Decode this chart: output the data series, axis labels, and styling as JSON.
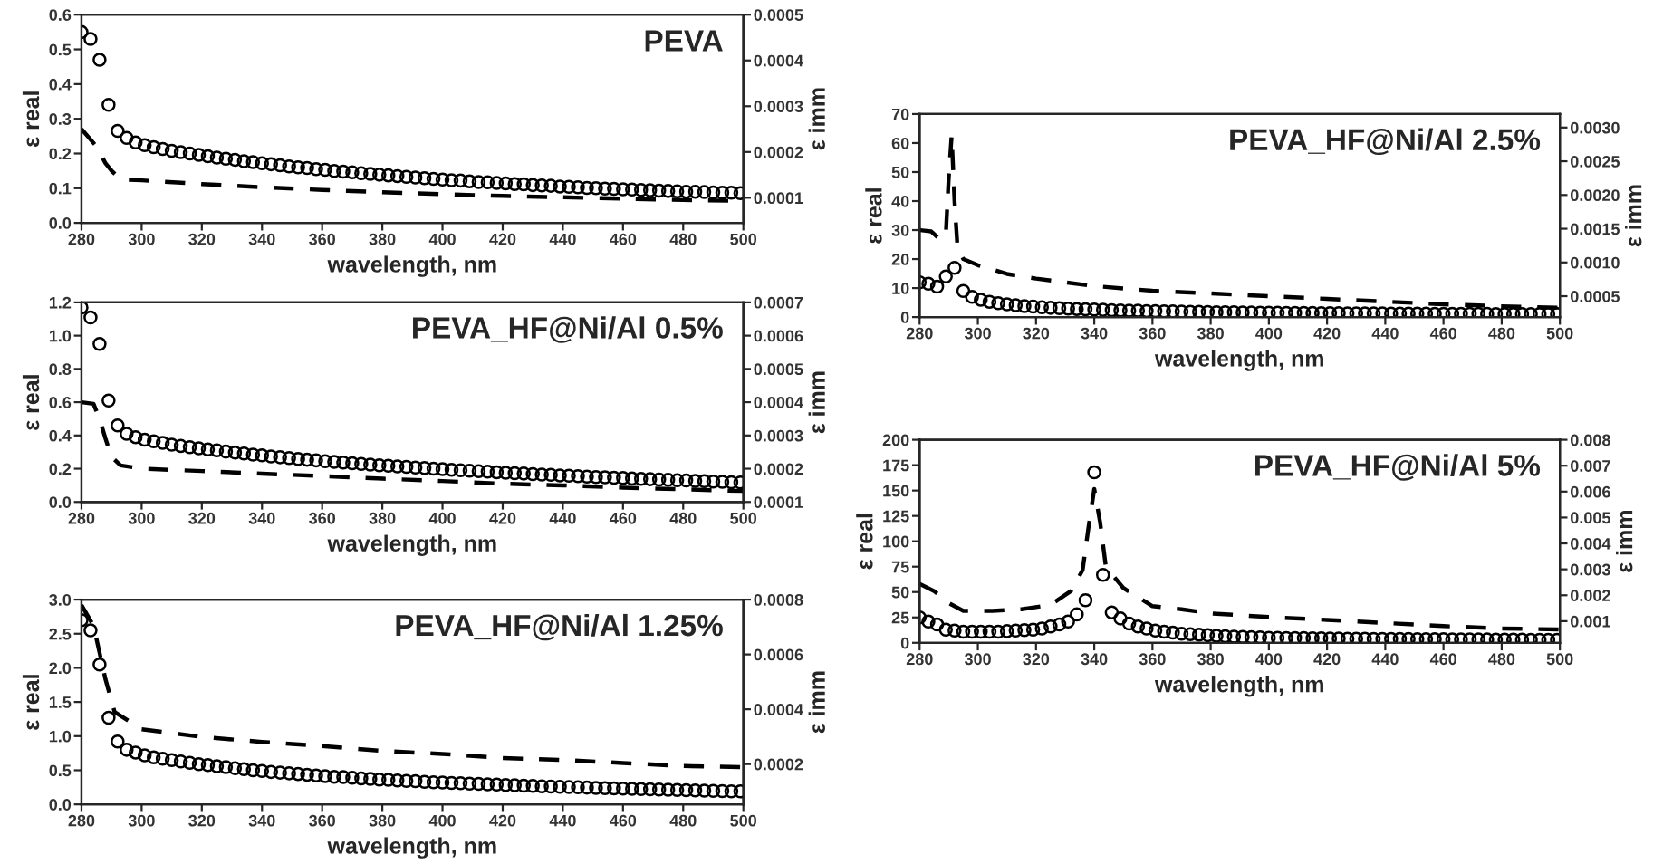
{
  "chart_data": [
    {
      "type": "scatter",
      "title": "PEVA",
      "xlabel": "wavelength, nm",
      "ylabel": "ε real",
      "y2label": "ε imm",
      "xlim": [
        280,
        500
      ],
      "xticks": [
        280,
        300,
        320,
        340,
        360,
        380,
        400,
        420,
        440,
        460,
        480,
        500
      ],
      "ylim": [
        0,
        0.6
      ],
      "yticks": [
        {
          "value": 0,
          "label": "0.0"
        },
        {
          "value": 0.1,
          "label": "0.1"
        },
        {
          "value": 0.2,
          "label": "0.2"
        },
        {
          "value": 0.3,
          "label": "0.3"
        },
        {
          "value": 0.4,
          "label": "0.4"
        },
        {
          "value": 0.5,
          "label": "0.5"
        },
        {
          "value": 0.6,
          "label": "0.6"
        }
      ],
      "y2lim": [
        4.5e-05,
        0.0005
      ],
      "y2ticks": [
        {
          "value": 0.0001,
          "label": "0.0001"
        },
        {
          "value": 0.0002,
          "label": "0.0002"
        },
        {
          "value": 0.0003,
          "label": "0.0003"
        },
        {
          "value": 0.0004,
          "label": "0.0004"
        },
        {
          "value": 0.0005,
          "label": "0.0005"
        }
      ],
      "x": [
        280,
        283,
        286,
        289,
        292,
        295,
        298,
        301,
        304,
        307,
        310,
        313,
        316,
        319,
        322,
        325,
        328,
        331,
        334,
        337,
        340,
        343,
        346,
        349,
        352,
        355,
        358,
        361,
        364,
        367,
        370,
        373,
        376,
        379,
        382,
        385,
        388,
        391,
        394,
        397,
        400,
        403,
        406,
        409,
        412,
        415,
        418,
        421,
        424,
        427,
        430,
        433,
        436,
        439,
        442,
        445,
        448,
        451,
        454,
        457,
        460,
        463,
        466,
        469,
        472,
        475,
        478,
        481,
        484,
        487,
        490,
        493,
        496,
        499
      ],
      "series": [
        {
          "marker": "circle",
          "color": "#000000",
          "values": [
            0.55,
            0.53,
            0.47,
            0.34,
            0.265,
            0.245,
            0.232,
            0.224,
            0.218,
            0.213,
            0.208,
            0.204,
            0.2,
            0.196,
            0.192,
            0.188,
            0.185,
            0.182,
            0.178,
            0.175,
            0.172,
            0.169,
            0.166,
            0.163,
            0.16,
            0.158,
            0.155,
            0.153,
            0.15,
            0.148,
            0.146,
            0.143,
            0.141,
            0.139,
            0.137,
            0.135,
            0.133,
            0.131,
            0.129,
            0.127,
            0.125,
            0.123,
            0.122,
            0.12,
            0.118,
            0.117,
            0.115,
            0.114,
            0.112,
            0.111,
            0.109,
            0.108,
            0.107,
            0.105,
            0.104,
            0.103,
            0.101,
            0.1,
            0.099,
            0.098,
            0.097,
            0.096,
            0.095,
            0.094,
            0.093,
            0.092,
            0.091,
            0.09,
            0.09,
            0.089,
            0.088,
            0.087,
            0.087,
            0.086
          ]
        },
        {
          "type": "line",
          "axis": "y2",
          "line_style": "dashed",
          "color": "#000000",
          "x": [
            280,
            285,
            288,
            290,
            293,
            300,
            320,
            340,
            360,
            380,
            400,
            420,
            440,
            460,
            480,
            500
          ],
          "values": [
            0.00025,
            0.000212,
            0.000175,
            0.000159,
            0.00014,
            0.000138,
            0.00013,
            0.000123,
            0.000117,
            0.000112,
            0.000108,
            0.000104,
            0.000101,
            9.8e-05,
            9.5e-05,
            9.3e-05
          ]
        }
      ]
    },
    {
      "type": "scatter",
      "title": "PEVA_HF@Ni/Al 0.5%",
      "xlabel": "wavelength, nm",
      "ylabel": "ε real",
      "y2label": "ε imm",
      "xlim": [
        280,
        500
      ],
      "xticks": [
        280,
        300,
        320,
        340,
        360,
        380,
        400,
        420,
        440,
        460,
        480,
        500
      ],
      "ylim": [
        0,
        1.2
      ],
      "yticks": [
        {
          "value": 0,
          "label": "0.0"
        },
        {
          "value": 0.2,
          "label": "0.2"
        },
        {
          "value": 0.4,
          "label": "0.4"
        },
        {
          "value": 0.6,
          "label": "0.6"
        },
        {
          "value": 0.8,
          "label": "0.8"
        },
        {
          "value": 1.0,
          "label": "1.0"
        },
        {
          "value": 1.2,
          "label": "1.2"
        }
      ],
      "y2lim": [
        0.0001,
        0.0007
      ],
      "y2ticks": [
        {
          "value": 0.0001,
          "label": "0.0001"
        },
        {
          "value": 0.0002,
          "label": "0.0002"
        },
        {
          "value": 0.0003,
          "label": "0.0003"
        },
        {
          "value": 0.0004,
          "label": "0.0004"
        },
        {
          "value": 0.0005,
          "label": "0.0005"
        },
        {
          "value": 0.0006,
          "label": "0.0006"
        },
        {
          "value": 0.0007,
          "label": "0.0007"
        }
      ],
      "x": [
        280,
        283,
        286,
        289,
        292,
        295,
        298,
        301,
        304,
        307,
        310,
        313,
        316,
        319,
        322,
        325,
        328,
        331,
        334,
        337,
        340,
        343,
        346,
        349,
        352,
        355,
        358,
        361,
        364,
        367,
        370,
        373,
        376,
        379,
        382,
        385,
        388,
        391,
        394,
        397,
        400,
        403,
        406,
        409,
        412,
        415,
        418,
        421,
        424,
        427,
        430,
        433,
        436,
        439,
        442,
        445,
        448,
        451,
        454,
        457,
        460,
        463,
        466,
        469,
        472,
        475,
        478,
        481,
        484,
        487,
        490,
        493,
        496,
        499
      ],
      "series": [
        {
          "marker": "circle",
          "color": "#000000",
          "values": [
            1.17,
            1.11,
            0.95,
            0.61,
            0.46,
            0.41,
            0.39,
            0.375,
            0.365,
            0.355,
            0.345,
            0.337,
            0.33,
            0.323,
            0.316,
            0.31,
            0.303,
            0.297,
            0.291,
            0.285,
            0.28,
            0.274,
            0.269,
            0.264,
            0.259,
            0.254,
            0.25,
            0.245,
            0.241,
            0.237,
            0.233,
            0.229,
            0.225,
            0.221,
            0.218,
            0.214,
            0.211,
            0.207,
            0.204,
            0.2,
            0.197,
            0.194,
            0.191,
            0.188,
            0.185,
            0.182,
            0.179,
            0.176,
            0.173,
            0.171,
            0.168,
            0.165,
            0.163,
            0.16,
            0.158,
            0.155,
            0.153,
            0.15,
            0.148,
            0.146,
            0.144,
            0.141,
            0.139,
            0.137,
            0.135,
            0.133,
            0.131,
            0.129,
            0.127,
            0.125,
            0.123,
            0.121,
            0.119,
            0.117
          ]
        },
        {
          "type": "line",
          "axis": "y2",
          "line_style": "dashed",
          "color": "#000000",
          "x": [
            280,
            284,
            286,
            288,
            290,
            293,
            300,
            320,
            340,
            360,
            380,
            400,
            420,
            440,
            460,
            480,
            500
          ],
          "values": [
            0.0004,
            0.000395,
            0.00035,
            0.00029,
            0.000235,
            0.00021,
            0.0002,
            0.000193,
            0.000185,
            0.000178,
            0.00017,
            0.000163,
            0.000155,
            0.00015,
            0.000143,
            0.000138,
            0.000133
          ]
        }
      ]
    },
    {
      "type": "scatter",
      "title": "PEVA_HF@Ni/Al 1.25%",
      "xlabel": "wavelength, nm",
      "ylabel": "ε real",
      "y2label": "ε imm",
      "xlim": [
        280,
        500
      ],
      "xticks": [
        280,
        300,
        320,
        340,
        360,
        380,
        400,
        420,
        440,
        460,
        480,
        500
      ],
      "ylim": [
        0,
        3.0
      ],
      "yticks": [
        {
          "value": 0,
          "label": "0.0"
        },
        {
          "value": 0.5,
          "label": "0.5"
        },
        {
          "value": 1.0,
          "label": "1.0"
        },
        {
          "value": 1.5,
          "label": "1.5"
        },
        {
          "value": 2.0,
          "label": "2.0"
        },
        {
          "value": 2.5,
          "label": "2.5"
        },
        {
          "value": 3.0,
          "label": "3.0"
        }
      ],
      "y2lim": [
        5.3e-05,
        0.0008
      ],
      "y2ticks": [
        {
          "value": 0.0002,
          "label": "0.0002"
        },
        {
          "value": 0.0004,
          "label": "0.0004"
        },
        {
          "value": 0.0006,
          "label": "0.0006"
        },
        {
          "value": 0.0008,
          "label": "0.0008"
        }
      ],
      "x": [
        280,
        283,
        286,
        289,
        292,
        295,
        298,
        301,
        304,
        307,
        310,
        313,
        316,
        319,
        322,
        325,
        328,
        331,
        334,
        337,
        340,
        343,
        346,
        349,
        352,
        355,
        358,
        361,
        364,
        367,
        370,
        373,
        376,
        379,
        382,
        385,
        388,
        391,
        394,
        397,
        400,
        403,
        406,
        409,
        412,
        415,
        418,
        421,
        424,
        427,
        430,
        433,
        436,
        439,
        442,
        445,
        448,
        451,
        454,
        457,
        460,
        463,
        466,
        469,
        472,
        475,
        478,
        481,
        484,
        487,
        490,
        493,
        496,
        499
      ],
      "series": [
        {
          "marker": "circle",
          "color": "#000000",
          "values": [
            2.7,
            2.55,
            2.05,
            1.27,
            0.92,
            0.8,
            0.76,
            0.72,
            0.69,
            0.67,
            0.65,
            0.63,
            0.61,
            0.59,
            0.575,
            0.56,
            0.545,
            0.53,
            0.515,
            0.5,
            0.49,
            0.475,
            0.465,
            0.455,
            0.445,
            0.435,
            0.425,
            0.415,
            0.405,
            0.4,
            0.39,
            0.38,
            0.375,
            0.365,
            0.36,
            0.35,
            0.345,
            0.34,
            0.33,
            0.325,
            0.32,
            0.315,
            0.31,
            0.305,
            0.3,
            0.295,
            0.29,
            0.285,
            0.28,
            0.275,
            0.27,
            0.265,
            0.26,
            0.258,
            0.254,
            0.25,
            0.246,
            0.242,
            0.238,
            0.234,
            0.23,
            0.227,
            0.224,
            0.22,
            0.217,
            0.214,
            0.21,
            0.207,
            0.204,
            0.2,
            0.198,
            0.195,
            0.192,
            0.19
          ]
        },
        {
          "type": "line",
          "axis": "y2",
          "line_style": "dashed",
          "color": "#000000",
          "x": [
            280,
            284,
            288,
            291,
            293,
            300,
            320,
            340,
            360,
            380,
            400,
            420,
            440,
            460,
            480,
            500
          ],
          "values": [
            0.00078,
            0.000705,
            0.000508,
            0.00039,
            0.000376,
            0.000327,
            0.000299,
            0.000281,
            0.000266,
            0.000248,
            0.000237,
            0.000222,
            0.000215,
            0.000204,
            0.000193,
            0.000189
          ]
        }
      ]
    },
    {
      "type": "scatter",
      "title": "PEVA_HF@Ni/Al 2.5%",
      "xlabel": "wavelength, nm",
      "ylabel": "ε real",
      "y2label": "ε imm",
      "xlim": [
        280,
        500
      ],
      "xticks": [
        280,
        300,
        320,
        340,
        360,
        380,
        400,
        420,
        440,
        460,
        480,
        500
      ],
      "ylim": [
        0,
        70
      ],
      "yticks": [
        0,
        10,
        20,
        30,
        40,
        50,
        60,
        70
      ],
      "y2lim": [
        0.00019,
        0.0032
      ],
      "y2ticks": [
        {
          "value": 0.0005,
          "label": "0.0005"
        },
        {
          "value": 0.001,
          "label": "0.0010"
        },
        {
          "value": 0.0015,
          "label": "0.0015"
        },
        {
          "value": 0.002,
          "label": "0.0020"
        },
        {
          "value": 0.0025,
          "label": "0.0025"
        },
        {
          "value": 0.003,
          "label": "0.0030"
        }
      ],
      "x": [
        280,
        283,
        286,
        289,
        292,
        295,
        298,
        301,
        304,
        307,
        310,
        313,
        316,
        319,
        322,
        325,
        328,
        331,
        334,
        337,
        340,
        343,
        346,
        349,
        352,
        355,
        358,
        361,
        364,
        367,
        370,
        373,
        376,
        379,
        382,
        385,
        388,
        391,
        394,
        397,
        400,
        403,
        406,
        409,
        412,
        415,
        418,
        421,
        424,
        427,
        430,
        433,
        436,
        439,
        442,
        445,
        448,
        451,
        454,
        457,
        460,
        463,
        466,
        469,
        472,
        475,
        478,
        481,
        484,
        487,
        490,
        493,
        496,
        499
      ],
      "series": [
        {
          "marker": "circle",
          "color": "#000000",
          "values": [
            12,
            11.5,
            10.5,
            14,
            17,
            9,
            7,
            6,
            5.3,
            4.8,
            4.4,
            4.1,
            3.8,
            3.6,
            3.4,
            3.2,
            3.05,
            2.9,
            2.8,
            2.7,
            2.6,
            2.5,
            2.4,
            2.3,
            2.25,
            2.2,
            2.1,
            2.05,
            2.0,
            1.95,
            1.9,
            1.85,
            1.8,
            1.75,
            1.7,
            1.68,
            1.65,
            1.6,
            1.58,
            1.55,
            1.5,
            1.48,
            1.46,
            1.44,
            1.42,
            1.4,
            1.38,
            1.36,
            1.34,
            1.32,
            1.3,
            1.28,
            1.27,
            1.25,
            1.24,
            1.22,
            1.21,
            1.19,
            1.18,
            1.16,
            1.15,
            1.14,
            1.12,
            1.11,
            1.1,
            1.09,
            1.08,
            1.07,
            1.06,
            1.05,
            1.04,
            1.03,
            1.02,
            1.01
          ]
        },
        {
          "type": "line",
          "axis": "y2",
          "line_style": "dashed",
          "color": "#000000",
          "x": [
            280,
            284,
            287,
            289,
            290,
            291,
            292,
            293,
            295,
            300,
            310,
            320,
            340,
            360,
            380,
            400,
            420,
            440,
            460,
            480,
            500
          ],
          "values": [
            0.00148,
            0.00146,
            0.00134,
            0.00141,
            0.00226,
            0.00288,
            0.0019,
            0.00123,
            0.00105,
            0.00096,
            0.00083,
            0.00076,
            0.00065,
            0.00058,
            0.00054,
            0.0005,
            0.00046,
            0.00042,
            0.00038,
            0.00035,
            0.00033
          ]
        }
      ]
    },
    {
      "type": "scatter",
      "title": "PEVA_HF@Ni/Al 5%",
      "xlabel": "wavelength, nm",
      "ylabel": "ε real",
      "y2label": "ε imm",
      "xlim": [
        280,
        500
      ],
      "xticks": [
        280,
        300,
        320,
        340,
        360,
        380,
        400,
        420,
        440,
        460,
        480,
        500
      ],
      "ylim": [
        0,
        200
      ],
      "yticks": [
        0,
        25,
        50,
        75,
        100,
        125,
        150,
        175,
        200
      ],
      "y2lim": [
        0.000165,
        0.008
      ],
      "y2ticks": [
        {
          "value": 0.001,
          "label": "0.001"
        },
        {
          "value": 0.002,
          "label": "0.002"
        },
        {
          "value": 0.003,
          "label": "0.003"
        },
        {
          "value": 0.004,
          "label": "0.004"
        },
        {
          "value": 0.005,
          "label": "0.005"
        },
        {
          "value": 0.006,
          "label": "0.006"
        },
        {
          "value": 0.007,
          "label": "0.007"
        },
        {
          "value": 0.008,
          "label": "0.008"
        }
      ],
      "x": [
        280,
        283,
        286,
        289,
        292,
        295,
        298,
        301,
        304,
        307,
        310,
        313,
        316,
        319,
        322,
        325,
        328,
        331,
        334,
        337,
        340,
        343,
        346,
        349,
        352,
        355,
        358,
        361,
        364,
        367,
        370,
        373,
        376,
        379,
        382,
        385,
        388,
        391,
        394,
        397,
        400,
        403,
        406,
        409,
        412,
        415,
        418,
        421,
        424,
        427,
        430,
        433,
        436,
        439,
        442,
        445,
        448,
        451,
        454,
        457,
        460,
        463,
        466,
        469,
        472,
        475,
        478,
        481,
        484,
        487,
        490,
        493,
        496,
        499
      ],
      "series": [
        {
          "marker": "circle",
          "color": "#000000",
          "values": [
            25,
            21,
            18,
            13,
            12,
            11,
            11,
            11,
            11,
            11,
            11.5,
            12,
            12.5,
            13,
            14,
            16,
            18,
            21,
            28,
            42,
            168,
            67,
            30,
            24,
            19,
            16,
            14,
            12,
            11,
            10,
            9,
            8.5,
            8,
            7.5,
            7,
            6.5,
            6,
            5.8,
            5.5,
            5.3,
            5,
            4.9,
            4.8,
            4.7,
            4.6,
            4.5,
            4.4,
            4.3,
            4.2,
            4.1,
            4.0,
            3.95,
            3.9,
            3.85,
            3.8,
            3.75,
            3.7,
            3.65,
            3.6,
            3.55,
            3.5,
            3.45,
            3.4,
            3.35,
            3.3,
            3.25,
            3.2,
            3.15,
            3.1,
            3.05,
            3.0,
            3.0,
            3.0,
            3.0
          ]
        },
        {
          "type": "line",
          "axis": "y2",
          "line_style": "dashed",
          "color": "#000000",
          "x": [
            280,
            285,
            290,
            295,
            305,
            315,
            325,
            332,
            336,
            338,
            340,
            342,
            344,
            350,
            360,
            370,
            380,
            400,
            420,
            440,
            460,
            480,
            500
          ],
          "values": [
            0.00244,
            0.00216,
            0.0017,
            0.0014,
            0.0014,
            0.00146,
            0.00163,
            0.00216,
            0.00297,
            0.0046,
            0.0061,
            0.00483,
            0.00309,
            0.00228,
            0.00158,
            0.00146,
            0.0013,
            0.00116,
            0.00105,
            0.00093,
            0.00081,
            0.00072,
            0.00068
          ]
        }
      ]
    }
  ]
}
